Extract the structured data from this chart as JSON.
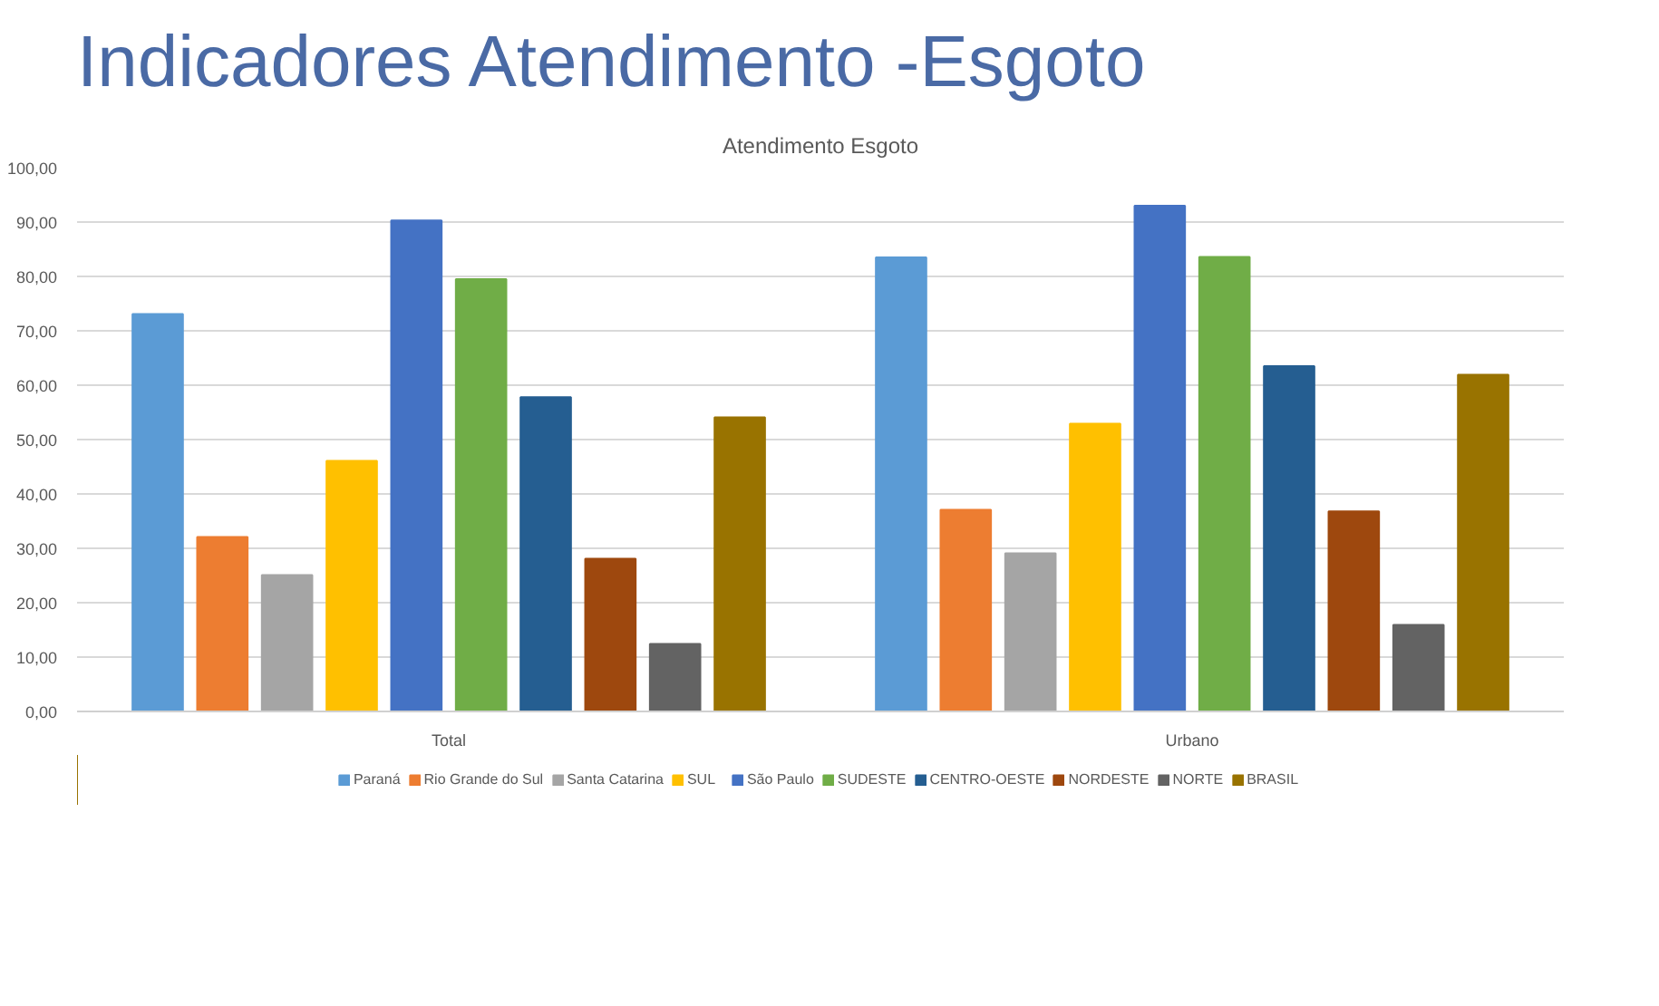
{
  "chart_data": {
    "type": "bar",
    "title": "Indicadores Atendimento -Esgoto",
    "subtitle": "Atendimento Esgoto",
    "categories": [
      "Total",
      "Urbano"
    ],
    "series": [
      {
        "name": "Paraná",
        "color": "#5b9bd5",
        "values": [
          73.1,
          83.5
        ]
      },
      {
        "name": "Rio Grande do Sul",
        "color": "#ed7d31",
        "values": [
          32.1,
          37.1
        ]
      },
      {
        "name": "Santa Catarina",
        "color": "#a5a5a5",
        "values": [
          25.1,
          29.1
        ]
      },
      {
        "name": "SUL",
        "color": "#ffc000",
        "values": [
          46.1,
          52.9
        ]
      },
      {
        "name": "São Paulo",
        "color": "#4472c4",
        "values": [
          90.3,
          93.0
        ]
      },
      {
        "name": "SUDESTE",
        "color": "#70ad47",
        "values": [
          79.5,
          83.6
        ]
      },
      {
        "name": "CENTRO-OESTE",
        "color": "#255e91",
        "values": [
          57.8,
          63.5
        ]
      },
      {
        "name": "NORDESTE",
        "color": "#9e480e",
        "values": [
          28.1,
          36.8
        ]
      },
      {
        "name": "NORTE",
        "color": "#636363",
        "values": [
          12.4,
          15.9
        ]
      },
      {
        "name": "BRASIL",
        "color": "#997300",
        "values": [
          54.1,
          61.9
        ]
      }
    ],
    "ylim": [
      0,
      100
    ],
    "yticks": [
      {
        "value": 0,
        "label": "0,00"
      },
      {
        "value": 10,
        "label": "10,00"
      },
      {
        "value": 20,
        "label": "20,00"
      },
      {
        "value": 30,
        "label": "30,00"
      },
      {
        "value": 40,
        "label": "40,00"
      },
      {
        "value": 50,
        "label": "50,00"
      },
      {
        "value": 60,
        "label": "60,00"
      },
      {
        "value": 70,
        "label": "70,00"
      },
      {
        "value": 80,
        "label": "80,00"
      },
      {
        "value": 90,
        "label": "90,00"
      },
      {
        "value": 100,
        "label": "100,00"
      }
    ],
    "grid": "y",
    "legend": "bottom"
  }
}
